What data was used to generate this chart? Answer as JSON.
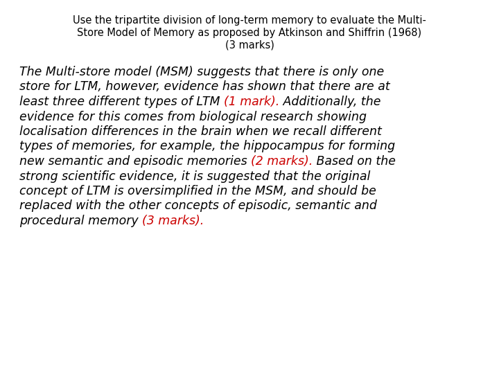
{
  "bg_color": "#ffffff",
  "title_lines": [
    "Use the tripartite division of long-term memory to evaluate the Multi-",
    "Store Model of Memory as proposed by Atkinson and Shiffrin (1968)",
    "(3 marks)"
  ],
  "title_color": "#000000",
  "title_fontsize": 10.5,
  "body_fontsize": 12.5,
  "body_segments": [
    {
      "text": "The Multi-store model (MSM) suggests that there is only one store for LTM, however, evidence has shown that there are at least three different types of LTM ",
      "color": "#000000"
    },
    {
      "text": "(1 mark).",
      "color": "#cc0000"
    },
    {
      "text": " Additionally, the evidence for this comes from biological research showing localisation differences in the brain when we recall different types of memories, for example, the hippocampus for forming new semantic and episodic memories ",
      "color": "#000000"
    },
    {
      "text": "(2 marks).",
      "color": "#cc0000"
    },
    {
      "text": " Based on the strong scientific evidence, it is suggested that the original concept of LTM is oversimplified in the MSM, and should be replaced with the other concepts of episodic, semantic and procedural memory ",
      "color": "#000000"
    },
    {
      "text": "(3 marks).",
      "color": "#cc0000"
    }
  ],
  "lines_text": [
    "The Multi-store model (MSM) suggests that there is only one",
    "store for LTM, however, evidence has shown that there are at",
    "least three different types of LTM (1 mark). Additionally, the",
    "evidence for this comes from biological research showing",
    "localisation differences in the brain when we recall different",
    "types of memories, for example, the hippocampus for forming",
    "new semantic and episodic memories (2 marks). Based on the",
    "strong scientific evidence, it is suggested that the original",
    "concept of LTM is oversimplified in the MSM, and should be",
    "replaced with the other concepts of episodic, semantic and",
    "procedural memory (3 marks)."
  ],
  "fig_width": 7.2,
  "fig_height": 5.4,
  "dpi": 100
}
